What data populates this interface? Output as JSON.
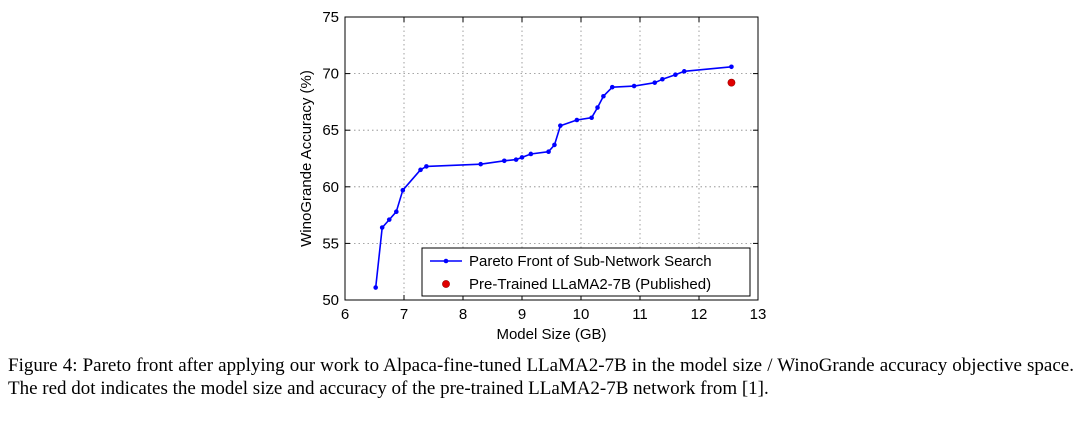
{
  "chart_data": {
    "type": "line",
    "title": "",
    "xlabel": "Model Size (GB)",
    "ylabel": "WinoGrande Accuracy (%)",
    "xlim": [
      6,
      13
    ],
    "ylim": [
      50,
      75
    ],
    "xticks": [
      6,
      7,
      8,
      9,
      10,
      11,
      12,
      13
    ],
    "yticks": [
      50,
      55,
      60,
      65,
      70,
      75
    ],
    "grid": true,
    "legend_position": "bottom-right",
    "series": [
      {
        "name": "Pareto Front of Sub-Network Search",
        "kind": "line-with-markers",
        "color": "#0000ff",
        "x": [
          6.52,
          6.63,
          6.75,
          6.87,
          6.98,
          7.28,
          7.38,
          8.3,
          8.7,
          8.9,
          9.0,
          9.15,
          9.45,
          9.55,
          9.65,
          9.93,
          10.18,
          10.28,
          10.38,
          10.53,
          10.9,
          11.25,
          11.38,
          11.6,
          11.75,
          12.55
        ],
        "y": [
          51.1,
          56.4,
          57.1,
          57.8,
          59.7,
          61.5,
          61.8,
          62.0,
          62.3,
          62.4,
          62.6,
          62.9,
          63.1,
          63.7,
          65.4,
          65.9,
          66.1,
          67.0,
          68.0,
          68.8,
          68.9,
          69.2,
          69.5,
          69.9,
          70.2,
          70.6
        ]
      },
      {
        "name": "Pre-Trained LLaMA2-7B (Published)",
        "kind": "point",
        "color": "#e00000",
        "x": [
          12.55
        ],
        "y": [
          69.2
        ]
      }
    ]
  },
  "caption": "Figure 4: Pareto front after applying our work to Alpaca-fine-tuned LLaMA2-7B in the model size / WinoGrande accuracy objective space. The red dot indicates the model size and accuracy of the pre-trained LLaMA2-7B network from [1]."
}
